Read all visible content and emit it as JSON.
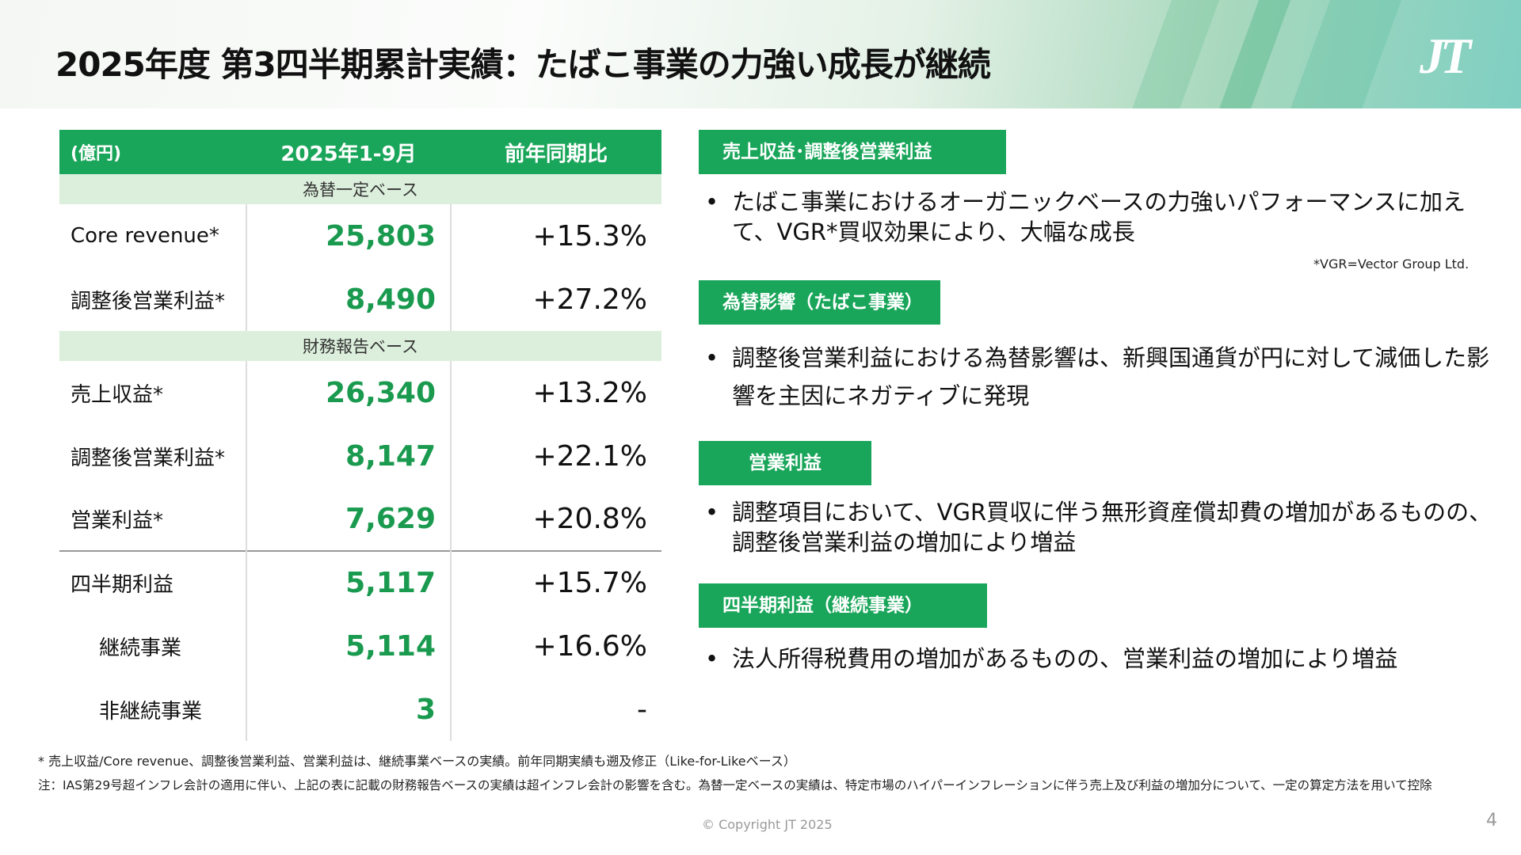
{
  "title": "2025年度 第3四半期累計実績：たばこ事業の力強い成長が継続",
  "logo": "JT",
  "table": {
    "headers": [
      "(億円)",
      "2025年1-9月",
      "前年同期比"
    ],
    "subheader1": "為替一定ベース",
    "subheader2": "財務報告ベース",
    "rows": [
      {
        "label": "Core revenue*",
        "value": "25,803",
        "change": "+15.3%"
      },
      {
        "label": "調整後営業利益*",
        "value": "8,490",
        "change": "+27.2%"
      },
      {
        "label": "売上収益*",
        "value": "26,340",
        "change": "+13.2%"
      },
      {
        "label": "調整後営業利益*",
        "value": "8,147",
        "change": "+22.1%"
      },
      {
        "label": "営業利益*",
        "value": "7,629",
        "change": "+20.8%"
      },
      {
        "label": "四半期利益",
        "value": "5,117",
        "change": "+15.7%"
      },
      {
        "label": "継続事業",
        "value": "5,114",
        "change": "+16.6%"
      },
      {
        "label": "非継続事業",
        "value": "3",
        "change": "-"
      }
    ]
  },
  "sections": [
    {
      "label": "売上収益･調整後営業利益",
      "text": "たばこ事業におけるオーガニックベースの力強いパフォーマンスに加えて、VGR*買収効果により、大幅な成長",
      "note": "*VGR=Vector Group Ltd."
    },
    {
      "label": "為替影響（たばこ事業）",
      "text": "調整後営業利益における為替影響は、新興国通貨が円に対して減価した影響を主因にネガティブに発現"
    },
    {
      "label": "営業利益",
      "text": "調整項目において、VGR買収に伴う無形資産償却費の増加があるものの、調整後営業利益の増加により増益"
    },
    {
      "label": "四半期利益（継続事業）",
      "text": "法人所得税費用の増加があるものの、営業利益の増加により増益"
    }
  ],
  "bullet": "•",
  "footnotes": [
    "* 売上収益/Core revenue、調整後営業利益、営業利益は、継続事業ベースの実績。前年同期実績も遡及修正（Like-for-Likeベース）",
    "注：IAS第29号超インフレ会計の適用に伴い、上記の表に記載の財務報告ベースの実績は超インフレ会計の影響を含む。為替一定ベースの実績は、特定市場のハイパーインフレーションに伴う売上及び利益の増加分について、一定の算定方法を用いて控除"
  ],
  "copyright": "© Copyright JT 2025",
  "page_number": "4",
  "colors": {
    "accent": "#1aa65a",
    "subheader_bg": "#dcefdc",
    "value": "#1a9a4f"
  }
}
